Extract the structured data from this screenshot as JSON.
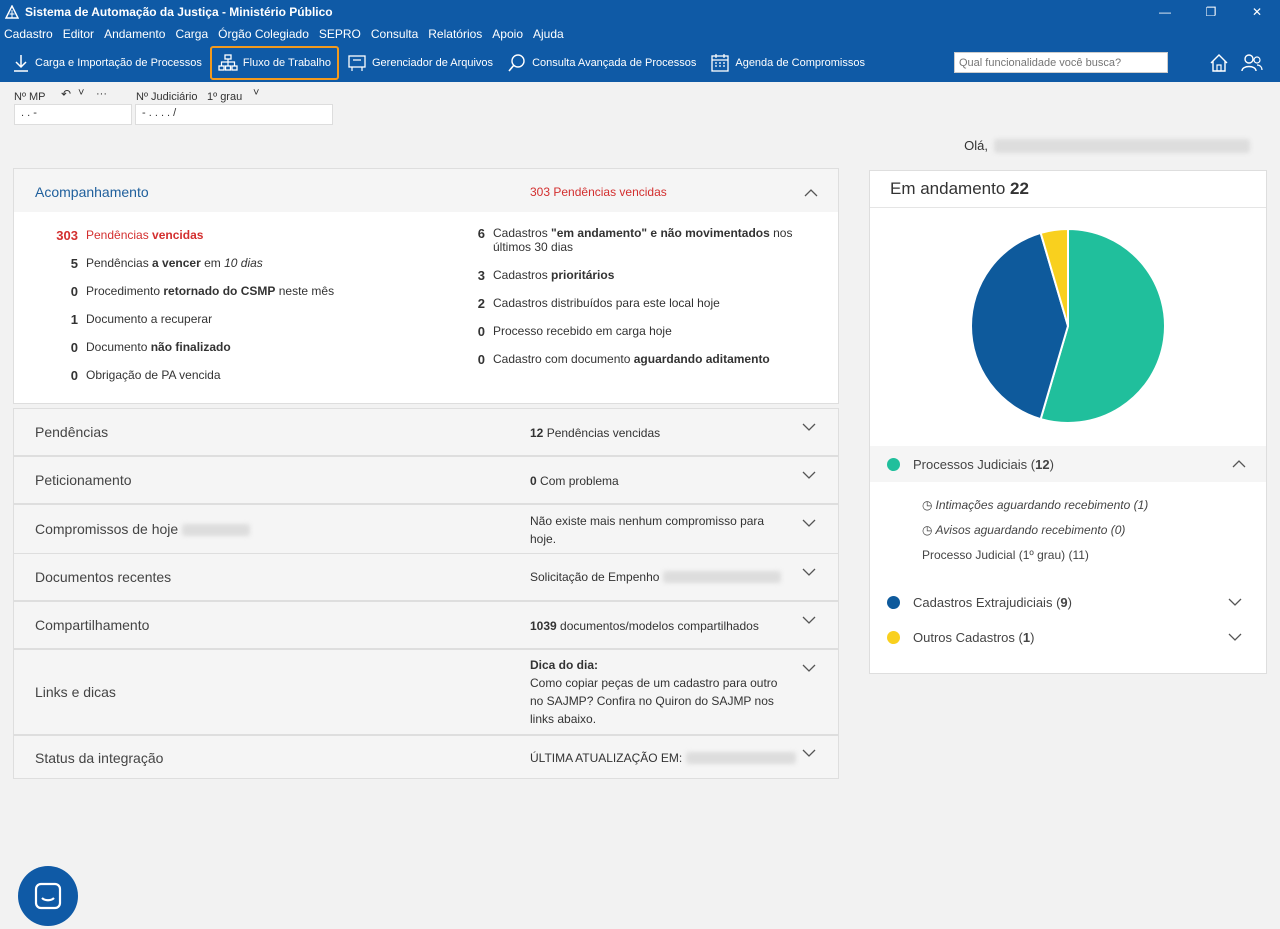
{
  "window": {
    "title": "Sistema de Automação da Justiça - Ministério Público"
  },
  "menu": [
    "Cadastro",
    "Editor",
    "Andamento",
    "Carga",
    "Órgão Colegiado",
    "SEPRO",
    "Consulta",
    "Relatórios",
    "Apoio",
    "Ajuda"
  ],
  "toolbar": {
    "items": [
      "Carga e Importação de Processos",
      "Fluxo de Trabalho",
      "Gerenciador de Arquivos",
      "Consulta Avançada de Processos",
      "Agenda de Compromissos"
    ],
    "search_placeholder": "Qual funcionalidade você busca?"
  },
  "numfields": {
    "mp_label": "Nº MP",
    "mp_value": ". . -",
    "jud_label": "Nº Judiciário",
    "grau": "1º grau",
    "jud_value": "- . . . . /"
  },
  "greeting": "Olá,",
  "acompanhamento": {
    "title": "Acompanhamento",
    "summary_count": "303",
    "summary_text": "Pendências vencidas",
    "left": [
      {
        "n": "303",
        "pre": "Pendências ",
        "bold": "vencidas",
        "post": "",
        "red": true
      },
      {
        "n": "5",
        "pre": "Pendências ",
        "bold": "a vencer",
        "post": " em ",
        "italic": "10 dias"
      },
      {
        "n": "0",
        "pre": "Procedimento ",
        "bold": "retornado do CSMP",
        "post": " neste mês"
      },
      {
        "n": "1",
        "pre": "Documento a recuperar",
        "bold": "",
        "post": ""
      },
      {
        "n": "0",
        "pre": "Documento ",
        "bold": "não finalizado",
        "post": ""
      },
      {
        "n": "0",
        "pre": "Obrigação de PA vencida",
        "bold": "",
        "post": ""
      }
    ],
    "right": [
      {
        "n": "6",
        "pre": "Cadastros ",
        "bold": "\"em andamento\" e não movimentados",
        "post": " nos",
        "line2": "últimos 30 dias"
      },
      {
        "n": "3",
        "pre": "Cadastros ",
        "bold": "prioritários",
        "post": ""
      },
      {
        "n": "2",
        "pre": "Cadastros distribuídos para este local hoje",
        "bold": "",
        "post": ""
      },
      {
        "n": "0",
        "pre": "Processo recebido em carga hoje",
        "bold": "",
        "post": ""
      },
      {
        "n": "0",
        "pre": "Cadastro com documento ",
        "bold": "aguardando aditamento",
        "post": ""
      }
    ]
  },
  "panels": {
    "pendencias": {
      "title": "Pendências",
      "count": "12",
      "text": "Pendências vencidas"
    },
    "peticionamento": {
      "title": "Peticionamento",
      "count": "0",
      "text": "Com problema"
    },
    "compromissos": {
      "title": "Compromissos de hoje",
      "line1": "Não existe mais nenhum compromisso para",
      "line2": "hoje."
    },
    "documentos": {
      "title": "Documentos recentes",
      "text": "Solicitação de Empenho"
    },
    "compartilhamento": {
      "title": "Compartilhamento",
      "count": "1039",
      "text": "documentos/modelos compartilhados"
    },
    "links": {
      "title": "Links e dicas",
      "head": "Dica do dia:",
      "l1": "Como copiar peças de um cadastro para outro",
      "l2": "no SAJMP? Confira no Quiron do SAJMP nos",
      "l3": "links abaixo."
    },
    "status": {
      "title": "Status da integração",
      "text": "ÚLTIMA ATUALIZAÇÃO EM:"
    }
  },
  "card": {
    "title": "Em andamento",
    "total": "22",
    "legend": [
      {
        "label": "Processos Judiciais",
        "count": "12",
        "color": "#20bf9c"
      },
      {
        "label": "Cadastros Extrajudiciais",
        "count": "9",
        "color": "#0e5a9c"
      },
      {
        "label": "Outros Cadastros",
        "count": "1",
        "color": "#f9d01e"
      }
    ],
    "subitems": [
      "Intimações aguardando recebimento (1)",
      "Avisos aguardando recebimento (0)",
      "Processo Judicial (1º grau) (11)"
    ]
  },
  "colors": {
    "primary": "#0f5aa6",
    "accent": "#f39a1d",
    "alert": "#d32f2f"
  }
}
